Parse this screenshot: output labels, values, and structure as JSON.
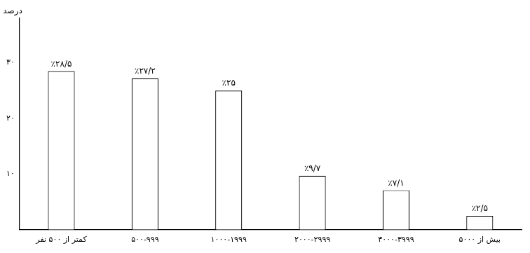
{
  "chart_data": {
    "type": "bar",
    "ylabel": "درصد",
    "categories": [
      "کمتر از ۵۰۰ نفر",
      "۵۰۰-۹۹۹",
      "۱۰۰۰-۱۹۹۹",
      "۲۰۰۰-۲۹۹۹",
      "۳۰۰۰-۳۹۹۹",
      "بیش از ۵۰۰۰"
    ],
    "values": [
      28.5,
      27.2,
      25,
      9.7,
      7.1,
      2.5
    ],
    "value_labels": [
      "٪۲۸/۵",
      "٪۲۷/۲",
      "٪۲۵",
      "٪۹/۷",
      "٪۷/۱",
      "٪۲/۵"
    ],
    "color": "#ffffff",
    "ylim": [
      0,
      38
    ],
    "yticks": [
      {
        "value": 10,
        "label": "۱۰"
      },
      {
        "value": 20,
        "label": "۲۰"
      },
      {
        "value": 30,
        "label": "۳۰"
      }
    ],
    "grid": false,
    "data_labels": true
  }
}
